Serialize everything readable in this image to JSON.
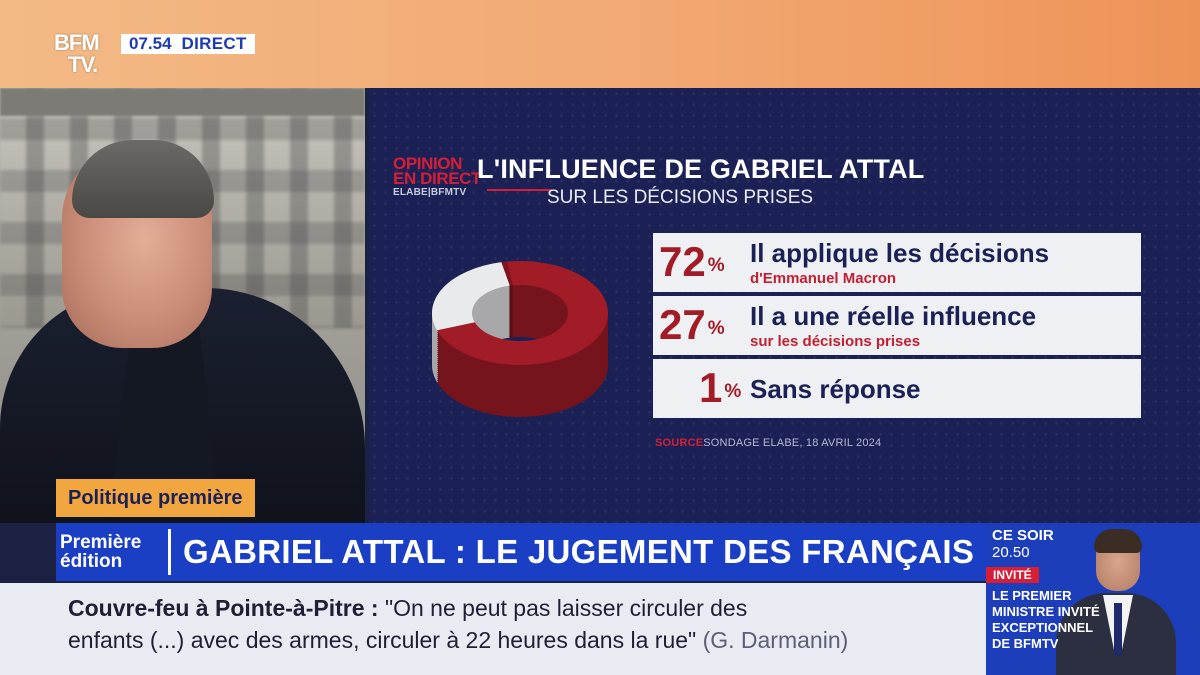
{
  "channel": {
    "logo_line1": "BFM",
    "logo_line2": "TV.",
    "time": "07.54",
    "live_label": "DIRECT"
  },
  "graphic": {
    "badge_line1": "OPINION",
    "badge_line2": "EN DIRECT",
    "badge_line3": "ELABE|BFMTV",
    "title": "L'INFLUENCE DE GABRIEL ATTAL",
    "subtitle": "SUR LES DÉCISIONS PRISES",
    "source_label": "SOURCE",
    "source_text": "SONDAGE ELABE, 18 AVRIL 2024",
    "colors": {
      "primary": "#a21c28",
      "secondary": "#e9eaec",
      "panel_bg": "#1c2155"
    }
  },
  "chart_data": {
    "type": "pie",
    "title": "L'INFLUENCE DE GABRIEL ATTAL",
    "subtitle": "SUR LES DÉCISIONS PRISES",
    "slices": [
      {
        "value": 72,
        "label": "Il applique les décisions",
        "detail": "d'Emmanuel Macron",
        "color": "#a21c28"
      },
      {
        "value": 27,
        "label": "Il a une réelle influence",
        "detail": "sur les décisions prises",
        "color": "#e9eaec"
      },
      {
        "value": 1,
        "label": "Sans réponse",
        "detail": "",
        "color": "#7d1420"
      }
    ],
    "unit": "%",
    "source": "SONDAGE ELABE, 18 AVRIL 2024"
  },
  "lower_third": {
    "segment_tag": "Politique première",
    "edition_line1": "Première",
    "edition_line2": "édition",
    "headline": "GABRIEL ATTAL : LE JUGEMENT DES FRANÇAIS"
  },
  "ticker": {
    "topic": "Couvre-feu à Pointe-à-Pitre :",
    "quote_line1": "\"On ne peut pas laisser circuler des",
    "quote_line2": "enfants (...) avec des armes, circuler à 22 heures dans la rue\"",
    "attribution": "(G. Darmanin)"
  },
  "promo": {
    "ce_soir": "CE SOIR",
    "hour": "20.50",
    "invite_label": "INVITÉ",
    "text": "LE PREMIER MINISTRE INVITÉ EXCEPTIONNEL DE BFMTV"
  }
}
